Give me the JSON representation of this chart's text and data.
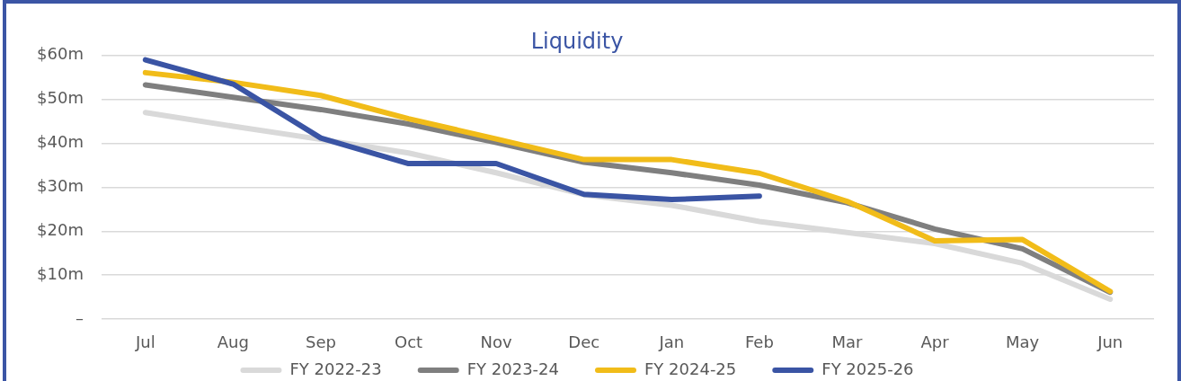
{
  "chart_data": {
    "type": "line",
    "title": "Liquidity",
    "categories": [
      "Jul",
      "Aug",
      "Sep",
      "Oct",
      "Nov",
      "Dec",
      "Jan",
      "Feb",
      "Mar",
      "Apr",
      "May",
      "Jun"
    ],
    "series": [
      {
        "name": "FY 2022-23",
        "color": "#d9d9d9",
        "values": [
          47.0,
          43.9,
          40.9,
          37.8,
          33.3,
          28.3,
          25.9,
          22.2,
          19.7,
          17.2,
          12.7,
          4.5
        ]
      },
      {
        "name": "FY 2023-24",
        "color": "#7f7f7f",
        "values": [
          53.3,
          50.5,
          47.7,
          44.4,
          40.2,
          35.7,
          33.3,
          30.5,
          26.5,
          20.5,
          16.0,
          6.1
        ]
      },
      {
        "name": "FY 2024-25",
        "color": "#f1bc19",
        "values": [
          56.1,
          53.9,
          50.9,
          45.6,
          41.0,
          36.3,
          36.3,
          33.2,
          26.8,
          17.8,
          18.1,
          6.3
        ]
      },
      {
        "name": "FY 2025-26",
        "color": "#3a54a4",
        "values": [
          59.0,
          53.5,
          41.2,
          35.4,
          35.4,
          28.4,
          27.2,
          28.0,
          null,
          null,
          null,
          null
        ]
      }
    ],
    "ylim": [
      0,
      60
    ],
    "yticks": [
      {
        "value": 0,
        "label": "–"
      },
      {
        "value": 10,
        "label": "$10m"
      },
      {
        "value": 20,
        "label": "$20m"
      },
      {
        "value": 30,
        "label": "$30m"
      },
      {
        "value": 40,
        "label": "$40m"
      },
      {
        "value": 50,
        "label": "$50m"
      },
      {
        "value": 60,
        "label": "$60m"
      }
    ],
    "grid": "y",
    "legend": "bottom",
    "marker": "none",
    "line_style": "solid"
  }
}
